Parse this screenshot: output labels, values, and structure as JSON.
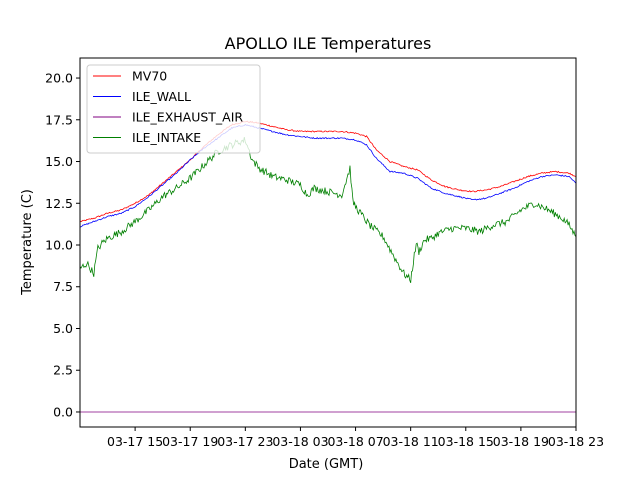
{
  "chart_data": {
    "type": "line",
    "title": "APOLLO ILE Temperatures",
    "xlabel": "Date (GMT)",
    "ylabel": "Temperature (C)",
    "xlim": [
      0,
      36.0
    ],
    "ylim": [
      -0.9,
      21.2
    ],
    "x_ticks": [
      {
        "x": 4,
        "label": "03-17 15"
      },
      {
        "x": 8,
        "label": "03-17 19"
      },
      {
        "x": 12,
        "label": "03-17 23"
      },
      {
        "x": 16,
        "label": "03-18 03"
      },
      {
        "x": 20,
        "label": "03-18 07"
      },
      {
        "x": 24,
        "label": "03-18 11"
      },
      {
        "x": 28,
        "label": "03-18 15"
      },
      {
        "x": 32,
        "label": "03-18 19"
      },
      {
        "x": 36,
        "label": "03-18 23"
      }
    ],
    "y_ticks": [
      {
        "y": 0.0,
        "label": "0.0"
      },
      {
        "y": 2.5,
        "label": "2.5"
      },
      {
        "y": 5.0,
        "label": "5.0"
      },
      {
        "y": 7.5,
        "label": "7.5"
      },
      {
        "y": 10.0,
        "label": "10.0"
      },
      {
        "y": 12.5,
        "label": "12.5"
      },
      {
        "y": 15.0,
        "label": "15.0"
      },
      {
        "y": 17.5,
        "label": "17.5"
      },
      {
        "y": 20.0,
        "label": "20.0"
      }
    ],
    "legend_position": "top-left",
    "x_unit": "hours since 03-17 11:00 GMT",
    "series": [
      {
        "name": "MV70",
        "color": "#ff0000",
        "x": [
          0,
          1,
          2,
          3,
          4,
          5,
          6,
          7,
          8,
          9,
          10,
          11,
          12,
          13,
          14,
          15,
          16,
          17,
          18,
          19,
          20,
          20.8,
          21.5,
          22.5,
          23.5,
          24.5,
          25.5,
          26.5,
          27.5,
          28.5,
          29.5,
          30.5,
          31.5,
          32.5,
          33.5,
          34.5,
          35.5,
          36
        ],
        "y": [
          11.4,
          11.6,
          11.9,
          12.1,
          12.5,
          13.0,
          13.7,
          14.4,
          15.1,
          15.9,
          16.6,
          17.2,
          17.4,
          17.3,
          17.1,
          16.9,
          16.8,
          16.8,
          16.8,
          16.8,
          16.7,
          16.5,
          15.7,
          15.0,
          14.7,
          14.5,
          13.9,
          13.5,
          13.3,
          13.2,
          13.3,
          13.5,
          13.8,
          14.1,
          14.3,
          14.4,
          14.3,
          14.1
        ]
      },
      {
        "name": "ILE_WALL",
        "color": "#0000ff",
        "x": [
          0,
          1,
          2,
          3,
          4,
          5,
          6,
          7,
          8,
          9,
          10,
          11,
          12,
          13,
          14,
          15,
          16,
          17,
          18,
          19,
          20,
          20.8,
          21.5,
          22.5,
          23.5,
          24.5,
          25.5,
          26.5,
          27.5,
          28.5,
          29.5,
          30.5,
          31.5,
          32.5,
          33.5,
          34.5,
          35.5,
          36
        ],
        "y": [
          11.1,
          11.4,
          11.7,
          11.9,
          12.3,
          12.9,
          13.6,
          14.3,
          15.1,
          15.8,
          16.4,
          17.0,
          17.2,
          17.0,
          16.8,
          16.6,
          16.5,
          16.4,
          16.4,
          16.4,
          16.3,
          16.0,
          15.2,
          14.4,
          14.3,
          14.0,
          13.4,
          13.1,
          12.9,
          12.7,
          12.8,
          13.1,
          13.4,
          13.8,
          14.1,
          14.2,
          14.1,
          13.7
        ]
      },
      {
        "name": "ILE_EXHAUST_AIR",
        "color": "#800080",
        "x": [
          0,
          36
        ],
        "y": [
          0.0,
          0.0
        ]
      },
      {
        "name": "ILE_INTAKE",
        "color": "#008000",
        "x": [
          0,
          0.5,
          1,
          1.3,
          1.6,
          2,
          3,
          4,
          5,
          6,
          7,
          8,
          9,
          10,
          11,
          12,
          12.5,
          13,
          14,
          15,
          16,
          16.5,
          17,
          18,
          19,
          19.6,
          19.8,
          20,
          21,
          22,
          23,
          23.5,
          24,
          24.4,
          24.6,
          25,
          25.5,
          26,
          27,
          28,
          29,
          30,
          31,
          32,
          33,
          34,
          35,
          35.5,
          36
        ],
        "y": [
          8.6,
          8.9,
          8.3,
          9.8,
          10.1,
          10.4,
          10.8,
          11.4,
          12.1,
          12.9,
          13.4,
          14.0,
          14.8,
          15.6,
          16.0,
          16.3,
          15.1,
          14.6,
          14.1,
          13.9,
          13.6,
          13.0,
          13.4,
          13.2,
          13.0,
          14.6,
          12.6,
          12.3,
          11.2,
          10.5,
          9.0,
          8.3,
          7.9,
          10.1,
          9.6,
          10.3,
          10.4,
          10.7,
          11.0,
          11.0,
          10.8,
          11.2,
          11.4,
          12.1,
          12.5,
          12.1,
          11.6,
          11.2,
          10.5
        ]
      }
    ]
  }
}
